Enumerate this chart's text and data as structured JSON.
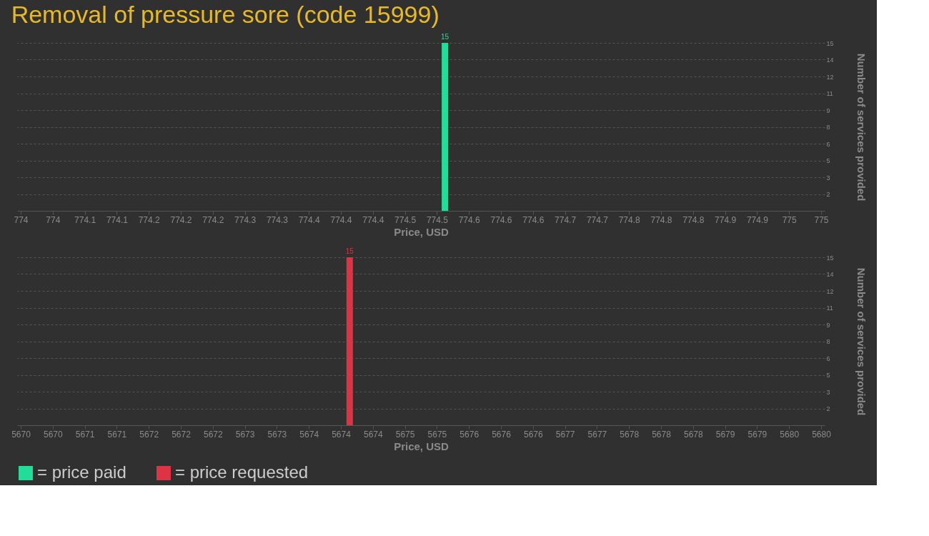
{
  "chart_data": [
    {
      "type": "bar",
      "title": "Removal of pressure sore (code 15999)",
      "xlabel": "Price, USD",
      "ylabel": "Number of services provided",
      "series": [
        {
          "name": "= price paid",
          "color": "#22dd99",
          "x": [
            774.53
          ],
          "values": [
            15
          ]
        }
      ],
      "xlim": [
        774,
        775
      ],
      "xticks": [
        {
          "value": 774,
          "label": "774"
        },
        {
          "value": 774.04,
          "label": "774"
        },
        {
          "value": 774.08,
          "label": "774.1"
        },
        {
          "value": 774.12,
          "label": "774.1"
        },
        {
          "value": 774.16,
          "label": "774.2"
        },
        {
          "value": 774.2,
          "label": "774.2"
        },
        {
          "value": 774.24,
          "label": "774.2"
        },
        {
          "value": 774.28,
          "label": "774.3"
        },
        {
          "value": 774.32,
          "label": "774.3"
        },
        {
          "value": 774.36,
          "label": "774.4"
        },
        {
          "value": 774.4,
          "label": "774.4"
        },
        {
          "value": 774.44,
          "label": "774.4"
        },
        {
          "value": 774.48,
          "label": "774.5"
        },
        {
          "value": 774.52,
          "label": "774.5"
        },
        {
          "value": 774.56,
          "label": "774.6"
        },
        {
          "value": 774.6,
          "label": "774.6"
        },
        {
          "value": 774.64,
          "label": "774.6"
        },
        {
          "value": 774.68,
          "label": "774.7"
        },
        {
          "value": 774.72,
          "label": "774.7"
        },
        {
          "value": 774.76,
          "label": "774.8"
        },
        {
          "value": 774.8,
          "label": "774.8"
        },
        {
          "value": 774.84,
          "label": "774.8"
        },
        {
          "value": 774.88,
          "label": "774.9"
        },
        {
          "value": 774.92,
          "label": "774.9"
        },
        {
          "value": 774.96,
          "label": "775"
        },
        {
          "value": 775,
          "label": "775"
        }
      ],
      "ylim": [
        0,
        15
      ],
      "yticks": [
        {
          "value": 1.5,
          "label": "2"
        },
        {
          "value": 3,
          "label": "3"
        },
        {
          "value": 4.5,
          "label": "5"
        },
        {
          "value": 6,
          "label": "6"
        },
        {
          "value": 7.5,
          "label": "8"
        },
        {
          "value": 9,
          "label": "9"
        },
        {
          "value": 10.5,
          "label": "11"
        },
        {
          "value": 12,
          "label": "12"
        },
        {
          "value": 13.5,
          "label": "14"
        },
        {
          "value": 15,
          "label": "15"
        }
      ],
      "grid": "y",
      "data_labels": true,
      "legend": "bottom"
    },
    {
      "type": "bar",
      "xlabel": "Price, USD",
      "ylabel": "Number of services provided",
      "series": [
        {
          "name": "= price requested",
          "color": "#dd3344",
          "x": [
            5674.11
          ],
          "values": [
            15
          ]
        }
      ],
      "xlim": [
        5670,
        5680
      ],
      "xticks": [
        {
          "value": 5670,
          "label": "5670"
        },
        {
          "value": 5670.4,
          "label": "5670"
        },
        {
          "value": 5670.8,
          "label": "5671"
        },
        {
          "value": 5671.2,
          "label": "5671"
        },
        {
          "value": 5671.6,
          "label": "5672"
        },
        {
          "value": 5672,
          "label": "5672"
        },
        {
          "value": 5672.4,
          "label": "5672"
        },
        {
          "value": 5672.8,
          "label": "5673"
        },
        {
          "value": 5673.2,
          "label": "5673"
        },
        {
          "value": 5673.6,
          "label": "5674"
        },
        {
          "value": 5674,
          "label": "5674"
        },
        {
          "value": 5674.4,
          "label": "5674"
        },
        {
          "value": 5674.8,
          "label": "5675"
        },
        {
          "value": 5675.2,
          "label": "5675"
        },
        {
          "value": 5675.6,
          "label": "5676"
        },
        {
          "value": 5676,
          "label": "5676"
        },
        {
          "value": 5676.4,
          "label": "5676"
        },
        {
          "value": 5676.8,
          "label": "5677"
        },
        {
          "value": 5677.2,
          "label": "5677"
        },
        {
          "value": 5677.6,
          "label": "5678"
        },
        {
          "value": 5678,
          "label": "5678"
        },
        {
          "value": 5678.4,
          "label": "5678"
        },
        {
          "value": 5678.8,
          "label": "5679"
        },
        {
          "value": 5679.2,
          "label": "5679"
        },
        {
          "value": 5679.6,
          "label": "5680"
        },
        {
          "value": 5680,
          "label": "5680"
        }
      ],
      "ylim": [
        0,
        15
      ],
      "yticks": [
        {
          "value": 1.5,
          "label": "2"
        },
        {
          "value": 3,
          "label": "3"
        },
        {
          "value": 4.5,
          "label": "5"
        },
        {
          "value": 6,
          "label": "6"
        },
        {
          "value": 7.5,
          "label": "8"
        },
        {
          "value": 9,
          "label": "9"
        },
        {
          "value": 10.5,
          "label": "11"
        },
        {
          "value": 12,
          "label": "12"
        },
        {
          "value": 13.5,
          "label": "14"
        },
        {
          "value": 15,
          "label": "15"
        }
      ],
      "grid": "y",
      "data_labels": true,
      "legend": "bottom"
    }
  ]
}
